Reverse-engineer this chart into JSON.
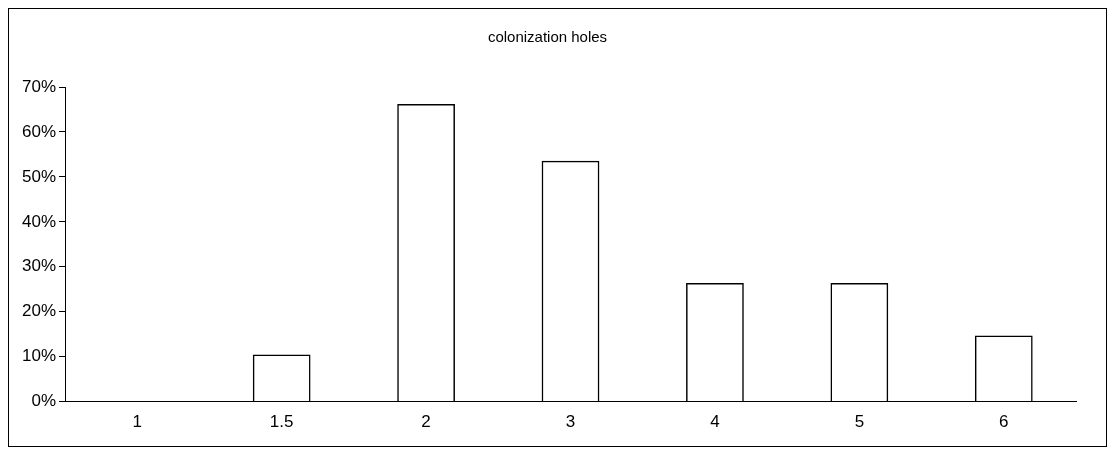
{
  "chart_data": {
    "type": "bar",
    "title": "colonization holes",
    "categories": [
      "1",
      "1.5",
      "2",
      "3",
      "4",
      "5",
      "6"
    ],
    "values": [
      0,
      10.5,
      66.2,
      53.6,
      26.4,
      26.4,
      14.7
    ],
    "color": "#000000",
    "ylim": [
      0,
      70
    ],
    "yticks": [
      {
        "value": 0,
        "label": "0%"
      },
      {
        "value": 10,
        "label": "10%"
      },
      {
        "value": 20,
        "label": "20%"
      },
      {
        "value": 30,
        "label": "30%"
      },
      {
        "value": 40,
        "label": "40%"
      },
      {
        "value": 50,
        "label": "50%"
      },
      {
        "value": 60,
        "label": "60%"
      },
      {
        "value": 70,
        "label": "70%"
      }
    ],
    "grid": false,
    "legend": false
  }
}
